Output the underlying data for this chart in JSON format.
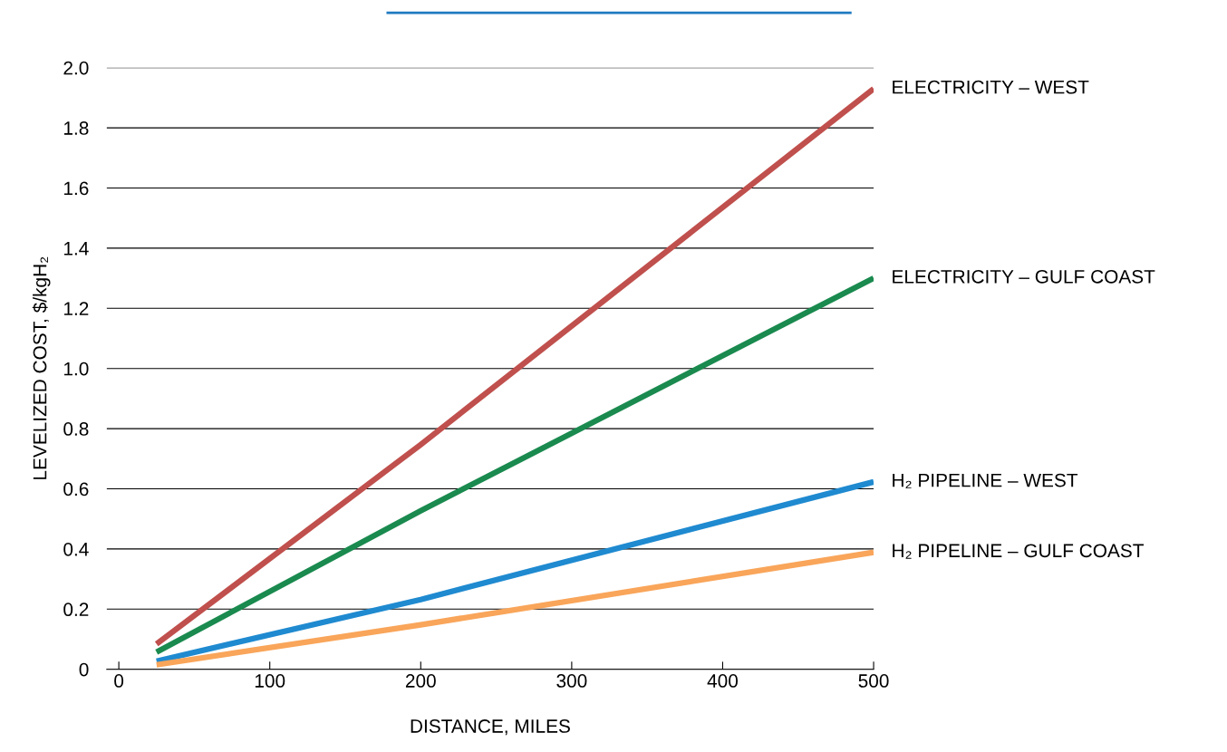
{
  "chart_data": {
    "type": "line",
    "xlabel": "DISTANCE, MILES",
    "ylabel": "LEVELIZED COST, $/kgH₂",
    "xlim": [
      -8,
      500
    ],
    "xticks": [
      0,
      100,
      200,
      300,
      400,
      500
    ],
    "ylim": [
      0,
      2.0
    ],
    "yticks": [
      0,
      0.2,
      0.4,
      0.6,
      0.8,
      {
        "value": 1,
        "label": "1.0"
      },
      1.2,
      1.4,
      1.6,
      1.8,
      {
        "value": 2,
        "label": "2.0"
      }
    ],
    "grid": "y",
    "line_style": "solid",
    "marker": "none",
    "series": [
      {
        "name": "ELECTRICITY – WEST",
        "color": "#c0504d",
        "x": [
          25,
          200,
          500
        ],
        "values": [
          0.084,
          0.747,
          1.93
        ]
      },
      {
        "name": "ELECTRICITY – GULF COAST",
        "color": "#1a8a4f",
        "x": [
          25,
          200,
          500
        ],
        "values": [
          0.057,
          0.527,
          1.3
        ]
      },
      {
        "name": "H₂ PIPELINE – WEST",
        "color": "#1f8ad0",
        "x": [
          25,
          200,
          500
        ],
        "values": [
          0.027,
          0.232,
          0.623
        ]
      },
      {
        "name": "H₂ PIPELINE – GULF COAST",
        "color": "#f9a55a",
        "x": [
          25,
          200,
          500
        ],
        "values": [
          0.015,
          0.148,
          0.389
        ]
      }
    ]
  }
}
